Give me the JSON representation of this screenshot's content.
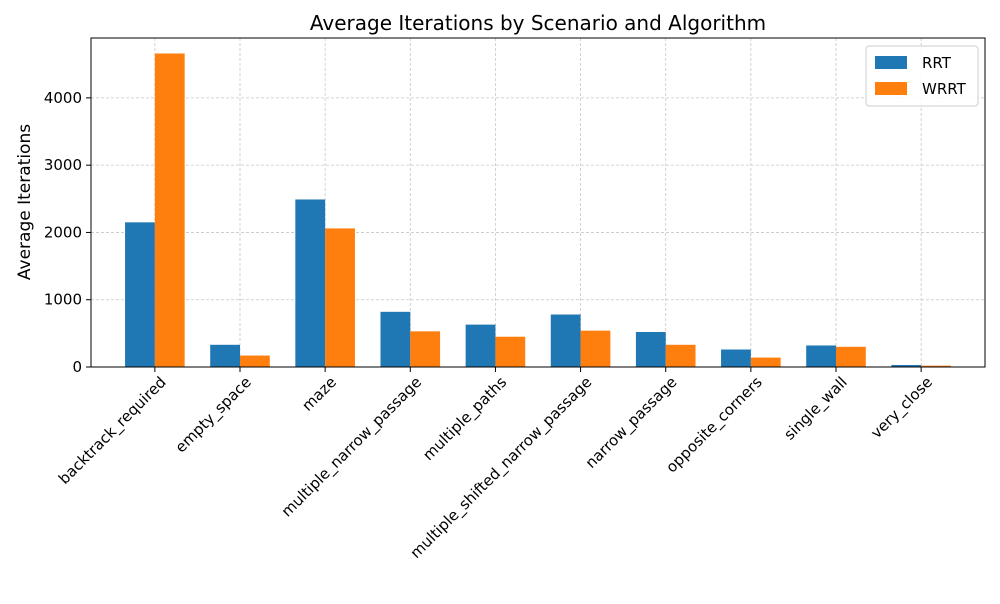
{
  "chart_data": {
    "type": "bar",
    "title": "Average Iterations by Scenario and Algorithm",
    "xlabel": "",
    "ylabel": "Average Iterations",
    "categories": [
      "backtrack_required",
      "empty_space",
      "maze",
      "multiple_narrow_passage",
      "multiple_paths",
      "multiple_shifted_narrow_passage",
      "narrow_passage",
      "opposite_corners",
      "single_wall",
      "very_close"
    ],
    "series": [
      {
        "name": "RRT",
        "color": "#1f77b4",
        "values": [
          2150,
          330,
          2490,
          820,
          630,
          780,
          520,
          260,
          320,
          30
        ]
      },
      {
        "name": "WRRT",
        "color": "#ff7f0e",
        "values": [
          4660,
          170,
          2060,
          530,
          450,
          540,
          330,
          140,
          300,
          20
        ]
      }
    ],
    "ylim": [
      0,
      4890
    ],
    "yticks": [
      0,
      1000,
      2000,
      3000,
      4000
    ],
    "ytick_labels": [
      "0",
      "1000",
      "2000",
      "3000",
      "4000"
    ],
    "grid": true,
    "legend_position": "top-right"
  }
}
